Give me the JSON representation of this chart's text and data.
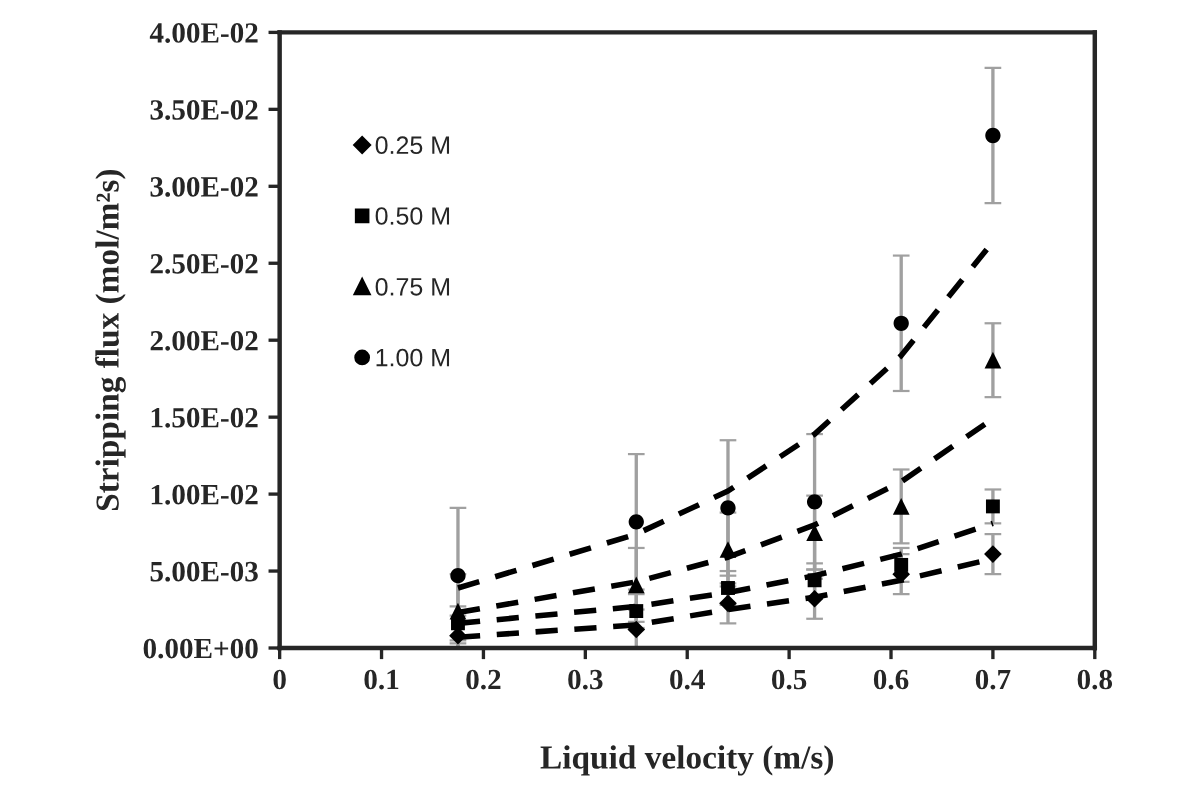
{
  "chart_data": {
    "type": "scatter",
    "xlabel": "Liquid velocity (m/s)",
    "ylabel": "Stripping flux (mol/m²s)",
    "xlim": [
      0,
      0.8
    ],
    "xticks": [
      0,
      0.1,
      0.2,
      0.3,
      0.4,
      0.5,
      0.6,
      0.7,
      0.8
    ],
    "ylim": [
      0,
      0.04
    ],
    "yticks": [
      {
        "value": 0,
        "label": "0.00E+00"
      },
      {
        "value": 0.005,
        "label": "5.00E-03"
      },
      {
        "value": 0.01,
        "label": "1.00E-02"
      },
      {
        "value": 0.015,
        "label": "1.50E-02"
      },
      {
        "value": 0.02,
        "label": "2.00E-02"
      },
      {
        "value": 0.025,
        "label": "2.50E-02"
      },
      {
        "value": 0.03,
        "label": "3.00E-02"
      },
      {
        "value": 0.035,
        "label": "3.50E-02"
      },
      {
        "value": 0.04,
        "label": "4.00E-02"
      }
    ],
    "x": [
      0.175,
      0.35,
      0.44,
      0.525,
      0.61,
      0.7
    ],
    "legend": "top left",
    "grid": false,
    "series": [
      {
        "name": "0.25 M",
        "marker": "diamond",
        "color": "#000000",
        "values": [
          0.0008,
          0.0012,
          0.0029,
          0.0032,
          0.0048,
          0.0061
        ],
        "errors": [
          0.0013,
          0.0013,
          0.0013,
          0.0013,
          0.0013,
          0.0013
        ]
      },
      {
        "name": "0.50 M",
        "marker": "square",
        "color": "#000000",
        "values": [
          0.0016,
          0.0024,
          0.0039,
          0.0044,
          0.0054,
          0.0092
        ],
        "errors": [
          0.0011,
          0.0011,
          0.0011,
          0.0011,
          0.0011,
          0.0011
        ]
      },
      {
        "name": "0.75 M",
        "marker": "triangle",
        "color": "#000000",
        "values": [
          0.0024,
          0.0041,
          0.0064,
          0.0075,
          0.0092,
          0.0187
        ],
        "errors": [
          0.0024,
          0.0024,
          0.0024,
          0.0024,
          0.0024,
          0.0024
        ]
      },
      {
        "name": "1.00 M",
        "marker": "circle",
        "color": "#000000",
        "values": [
          0.0047,
          0.0082,
          0.0091,
          0.0095,
          0.0211,
          0.0333
        ],
        "errors": [
          0.0044,
          0.0044,
          0.0044,
          0.0044,
          0.0044,
          0.0044
        ]
      },
      {
        "type": "line",
        "line_style": "dashed",
        "color": "#000000",
        "x": [
          0.175,
          0.35,
          0.44,
          0.525,
          0.61,
          0.7
        ],
        "values": [
          0.0007,
          0.0015,
          0.0025,
          0.0033,
          0.0044,
          0.0058
        ]
      },
      {
        "type": "line",
        "line_style": "dashed",
        "color": "#000000",
        "x": [
          0.175,
          0.35,
          0.44,
          0.525,
          0.61,
          0.7
        ],
        "values": [
          0.0016,
          0.0027,
          0.0036,
          0.0047,
          0.0061,
          0.0081
        ]
      },
      {
        "type": "line",
        "line_style": "dashed",
        "color": "#000000",
        "x": [
          0.175,
          0.35,
          0.44,
          0.525,
          0.61,
          0.7
        ],
        "values": [
          0.0023,
          0.0043,
          0.0059,
          0.008,
          0.0108,
          0.0149
        ]
      },
      {
        "type": "line",
        "line_style": "dashed",
        "color": "#000000",
        "x": [
          0.175,
          0.35,
          0.44,
          0.525,
          0.61,
          0.7
        ],
        "values": [
          0.0039,
          0.0074,
          0.0102,
          0.0139,
          0.019,
          0.0264
        ]
      }
    ]
  }
}
